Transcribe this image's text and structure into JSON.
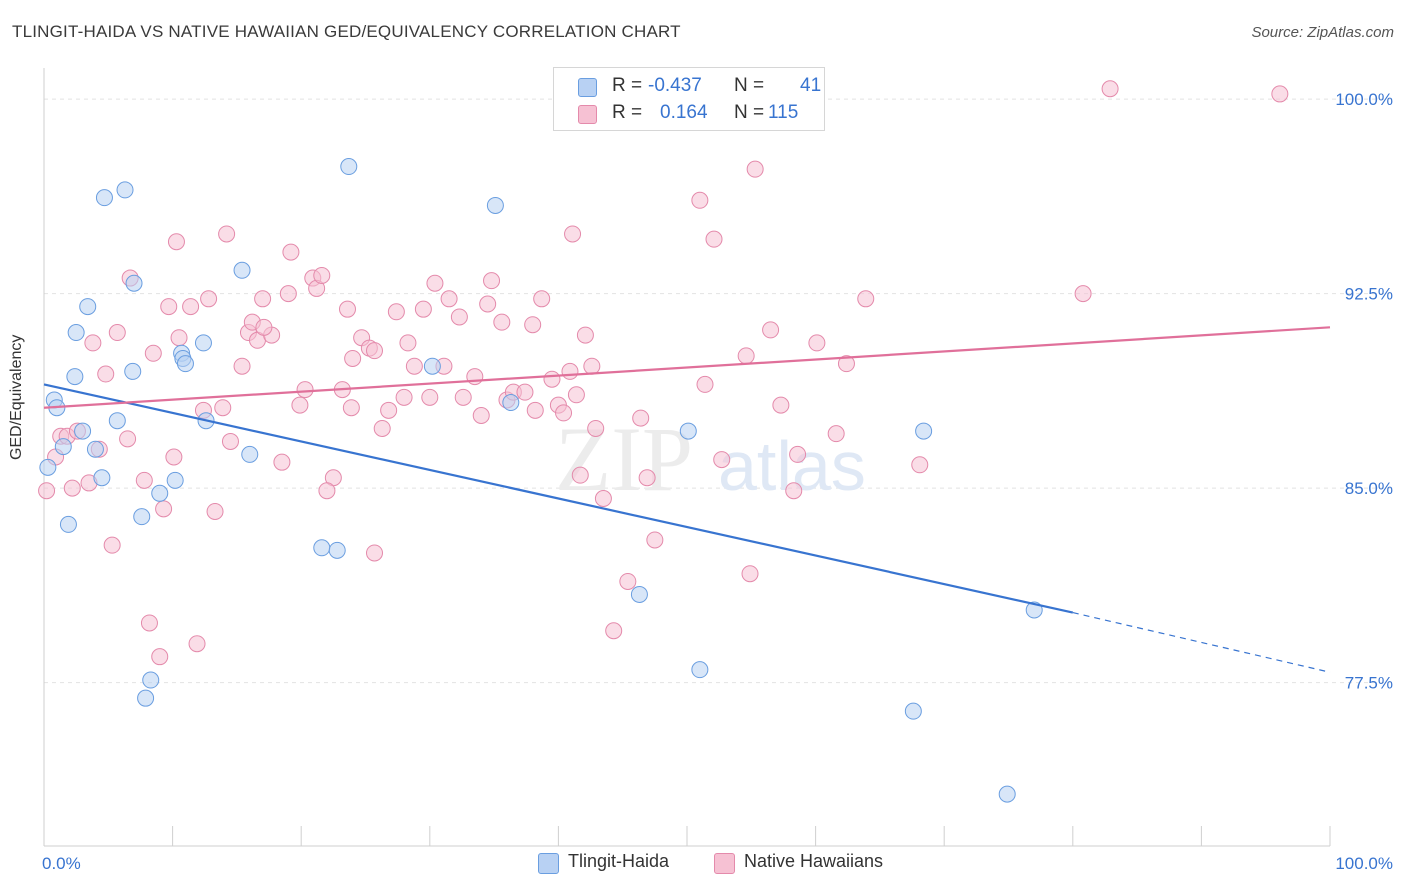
{
  "title": "TLINGIT-HAIDA VS NATIVE HAWAIIAN GED/EQUIVALENCY CORRELATION CHART",
  "source": "Source: ZipAtlas.com",
  "watermark": {
    "zip": "ZIP",
    "atlas": "atlas"
  },
  "legend": {
    "rows": [
      {
        "r_label": "R =",
        "r_value": "-0.437",
        "n_label": "N =",
        "n_value": "41"
      },
      {
        "r_label": "R =",
        "r_value": "0.164",
        "n_label": "N =",
        "n_value": "115"
      }
    ]
  },
  "bottom_legend": [
    "Tlingit-Haida",
    "Native Hawaiians"
  ],
  "colors": {
    "blue": "#3874d0",
    "blue_fill": "#b8d1f3",
    "pink": "#e0709a",
    "pink_fill": "#f6c1d3",
    "text_blue": "#3874d0"
  },
  "chart_data": {
    "type": "scatter",
    "title": "TLINGIT-HAIDA VS NATIVE HAWAIIAN GED/EQUIVALENCY CORRELATION CHART",
    "xlabel": "",
    "ylabel": "GED/Equivalency",
    "xlim": [
      0,
      100
    ],
    "ylim": [
      71.2,
      101.2
    ],
    "x_tick_labels": [
      "0.0%",
      "100.0%"
    ],
    "y_ticks": [
      77.5,
      85.0,
      92.5,
      100.0
    ],
    "y_tick_labels": [
      "77.5%",
      "85.0%",
      "92.5%",
      "100.0%"
    ],
    "series": [
      {
        "name": "Tlingit-Haida",
        "r": -0.437,
        "n": 41,
        "trend": {
          "x0": 0,
          "y0": 89.0,
          "x1": 80,
          "y1": 80.2,
          "dash_to": 100,
          "dash_y": 77.9
        },
        "points": [
          [
            0.3,
            85.8
          ],
          [
            0.8,
            88.4
          ],
          [
            1.0,
            88.1
          ],
          [
            1.5,
            86.6
          ],
          [
            1.9,
            83.6
          ],
          [
            2.4,
            89.3
          ],
          [
            2.5,
            91.0
          ],
          [
            3.0,
            87.2
          ],
          [
            3.4,
            92.0
          ],
          [
            4.0,
            86.5
          ],
          [
            4.5,
            85.4
          ],
          [
            4.7,
            96.2
          ],
          [
            5.7,
            87.6
          ],
          [
            6.3,
            96.5
          ],
          [
            6.9,
            89.5
          ],
          [
            7.0,
            92.9
          ],
          [
            7.6,
            83.9
          ],
          [
            7.9,
            76.9
          ],
          [
            8.3,
            77.6
          ],
          [
            9.0,
            84.8
          ],
          [
            10.2,
            85.3
          ],
          [
            10.7,
            90.2
          ],
          [
            10.8,
            90.0
          ],
          [
            11.0,
            89.8
          ],
          [
            12.4,
            90.6
          ],
          [
            12.6,
            87.6
          ],
          [
            15.4,
            93.4
          ],
          [
            16.0,
            86.3
          ],
          [
            21.6,
            82.7
          ],
          [
            22.8,
            82.6
          ],
          [
            23.7,
            97.4
          ],
          [
            30.2,
            89.7
          ],
          [
            35.1,
            95.9
          ],
          [
            36.3,
            88.3
          ],
          [
            46.3,
            80.9
          ],
          [
            50.1,
            87.2
          ],
          [
            51.0,
            78.0
          ],
          [
            67.6,
            76.4
          ],
          [
            68.4,
            87.2
          ],
          [
            74.9,
            73.2
          ],
          [
            77.0,
            80.3
          ]
        ]
      },
      {
        "name": "Native Hawaiians",
        "r": 0.164,
        "n": 115,
        "trend": {
          "x0": 0,
          "y0": 88.1,
          "x1": 100,
          "y1": 91.2
        },
        "points": [
          [
            0.2,
            84.9
          ],
          [
            0.9,
            86.2
          ],
          [
            1.3,
            87.0
          ],
          [
            1.8,
            87.0
          ],
          [
            2.2,
            85.0
          ],
          [
            2.6,
            87.2
          ],
          [
            3.5,
            85.2
          ],
          [
            3.8,
            90.6
          ],
          [
            4.3,
            86.5
          ],
          [
            4.8,
            89.4
          ],
          [
            5.3,
            82.8
          ],
          [
            5.7,
            91.0
          ],
          [
            6.5,
            86.9
          ],
          [
            6.7,
            93.1
          ],
          [
            7.8,
            85.3
          ],
          [
            8.2,
            79.8
          ],
          [
            8.5,
            90.2
          ],
          [
            9.0,
            78.5
          ],
          [
            9.3,
            84.2
          ],
          [
            9.7,
            92.0
          ],
          [
            10.3,
            94.5
          ],
          [
            10.5,
            90.8
          ],
          [
            11.4,
            92.0
          ],
          [
            11.9,
            79.0
          ],
          [
            12.4,
            88.0
          ],
          [
            12.8,
            92.3
          ],
          [
            13.3,
            84.1
          ],
          [
            13.9,
            88.1
          ],
          [
            14.2,
            94.8
          ],
          [
            14.5,
            86.8
          ],
          [
            15.4,
            89.7
          ],
          [
            15.9,
            91.0
          ],
          [
            16.2,
            91.4
          ],
          [
            16.6,
            90.7
          ],
          [
            17.0,
            92.3
          ],
          [
            17.7,
            90.9
          ],
          [
            18.5,
            86.0
          ],
          [
            19.0,
            92.5
          ],
          [
            19.2,
            94.1
          ],
          [
            19.9,
            88.2
          ],
          [
            20.3,
            88.8
          ],
          [
            20.9,
            93.1
          ],
          [
            21.2,
            92.7
          ],
          [
            21.6,
            93.2
          ],
          [
            22.5,
            85.4
          ],
          [
            23.2,
            88.8
          ],
          [
            23.6,
            91.9
          ],
          [
            23.9,
            88.1
          ],
          [
            24.0,
            90.0
          ],
          [
            24.7,
            90.8
          ],
          [
            25.3,
            90.4
          ],
          [
            25.7,
            90.3
          ],
          [
            26.3,
            87.3
          ],
          [
            26.8,
            88.0
          ],
          [
            27.4,
            91.8
          ],
          [
            28.0,
            88.5
          ],
          [
            28.3,
            90.6
          ],
          [
            28.8,
            89.7
          ],
          [
            29.5,
            91.9
          ],
          [
            30.0,
            88.5
          ],
          [
            30.4,
            92.9
          ],
          [
            31.1,
            89.7
          ],
          [
            31.5,
            92.3
          ],
          [
            32.3,
            91.6
          ],
          [
            32.6,
            88.5
          ],
          [
            33.5,
            89.3
          ],
          [
            34.0,
            87.8
          ],
          [
            34.5,
            92.1
          ],
          [
            34.8,
            93.0
          ],
          [
            35.6,
            91.4
          ],
          [
            36.0,
            88.4
          ],
          [
            36.5,
            88.7
          ],
          [
            37.4,
            88.7
          ],
          [
            38.0,
            91.3
          ],
          [
            38.2,
            88.0
          ],
          [
            38.7,
            92.3
          ],
          [
            39.5,
            89.2
          ],
          [
            40.0,
            88.2
          ],
          [
            40.4,
            87.9
          ],
          [
            40.9,
            89.5
          ],
          [
            41.1,
            94.8
          ],
          [
            41.4,
            88.6
          ],
          [
            41.7,
            85.5
          ],
          [
            42.1,
            90.9
          ],
          [
            42.6,
            89.7
          ],
          [
            42.9,
            87.3
          ],
          [
            43.5,
            84.6
          ],
          [
            44.3,
            79.5
          ],
          [
            45.4,
            81.4
          ],
          [
            46.4,
            87.7
          ],
          [
            46.9,
            85.4
          ],
          [
            47.5,
            83.0
          ],
          [
            51.0,
            96.1
          ],
          [
            51.4,
            89.0
          ],
          [
            52.1,
            94.6
          ],
          [
            52.7,
            86.1
          ],
          [
            54.6,
            90.1
          ],
          [
            54.9,
            81.7
          ],
          [
            55.3,
            97.3
          ],
          [
            56.5,
            91.1
          ],
          [
            57.3,
            88.2
          ],
          [
            58.6,
            86.3
          ],
          [
            60.1,
            90.6
          ],
          [
            61.6,
            87.1
          ],
          [
            62.4,
            89.8
          ],
          [
            63.9,
            92.3
          ],
          [
            68.1,
            85.9
          ],
          [
            80.8,
            92.5
          ],
          [
            82.9,
            100.4
          ],
          [
            96.1,
            100.2
          ],
          [
            17.1,
            91.2
          ],
          [
            10.1,
            86.2
          ],
          [
            22.0,
            84.9
          ],
          [
            25.7,
            82.5
          ],
          [
            58.3,
            84.9
          ]
        ]
      }
    ]
  }
}
